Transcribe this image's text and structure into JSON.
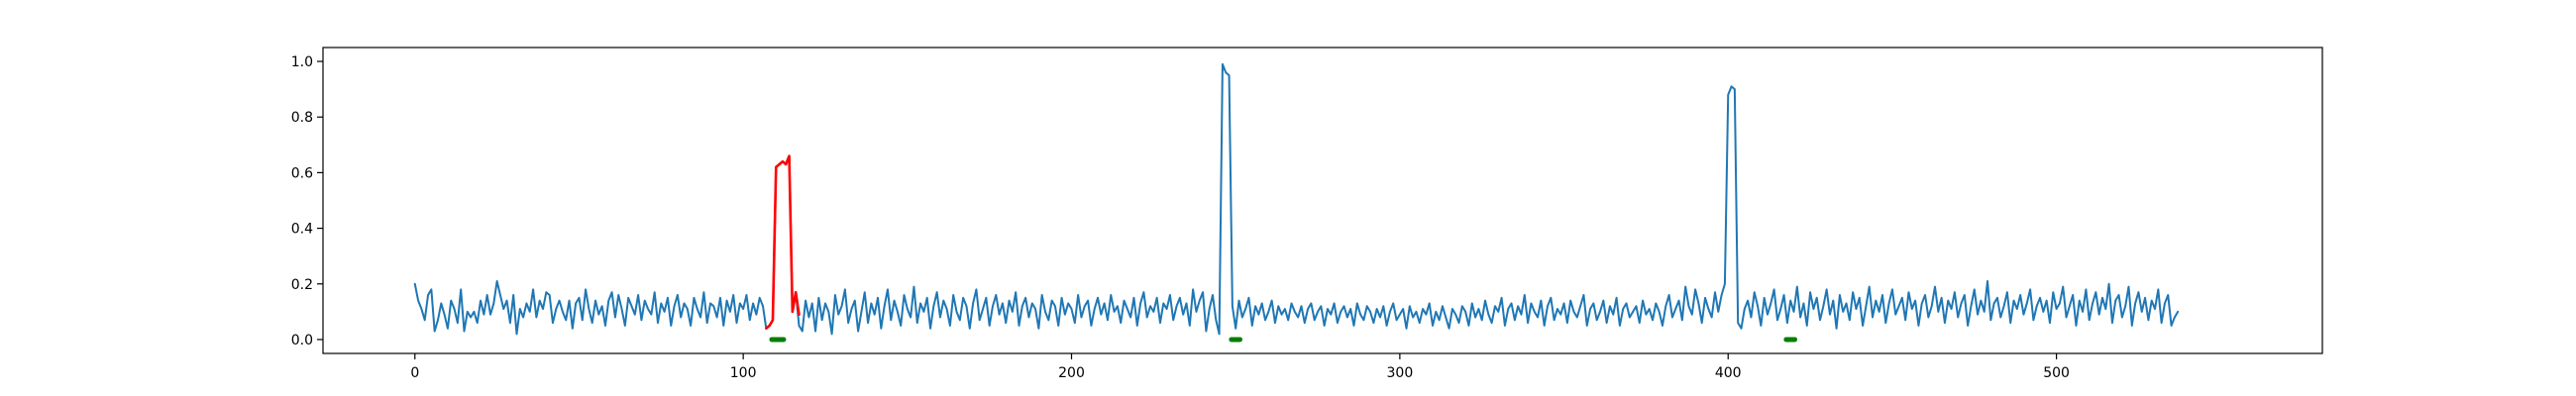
{
  "chart_data": {
    "type": "line",
    "title": "",
    "xlabel": "",
    "ylabel": "",
    "xlim": [
      -28,
      581
    ],
    "ylim": [
      -0.05,
      1.05
    ],
    "x_ticks": [
      0,
      100,
      200,
      300,
      400,
      500
    ],
    "y_ticks": [
      0.0,
      0.2,
      0.4,
      0.6,
      0.8,
      1.0
    ],
    "x_tick_labels": [
      "0",
      "100",
      "200",
      "300",
      "400",
      "500"
    ],
    "y_tick_labels": [
      "0.0",
      "0.2",
      "0.4",
      "0.6",
      "0.8",
      "1.0"
    ],
    "grid": false,
    "legend": "none",
    "series": [
      {
        "color": "#1f77b4",
        "x_start": 0,
        "values": [
          0.2,
          0.14,
          0.11,
          0.07,
          0.16,
          0.18,
          0.03,
          0.07,
          0.13,
          0.09,
          0.04,
          0.14,
          0.11,
          0.06,
          0.18,
          0.03,
          0.1,
          0.08,
          0.1,
          0.06,
          0.14,
          0.09,
          0.16,
          0.09,
          0.13,
          0.21,
          0.16,
          0.11,
          0.14,
          0.06,
          0.16,
          0.02,
          0.11,
          0.08,
          0.13,
          0.1,
          0.18,
          0.08,
          0.14,
          0.11,
          0.17,
          0.16,
          0.06,
          0.11,
          0.14,
          0.1,
          0.07,
          0.14,
          0.04,
          0.13,
          0.15,
          0.07,
          0.18,
          0.11,
          0.06,
          0.14,
          0.09,
          0.12,
          0.05,
          0.14,
          0.17,
          0.08,
          0.16,
          0.11,
          0.05,
          0.15,
          0.12,
          0.09,
          0.16,
          0.07,
          0.14,
          0.11,
          0.09,
          0.17,
          0.06,
          0.13,
          0.1,
          0.15,
          0.05,
          0.12,
          0.16,
          0.08,
          0.13,
          0.11,
          0.05,
          0.15,
          0.11,
          0.08,
          0.17,
          0.06,
          0.13,
          0.12,
          0.08,
          0.15,
          0.05,
          0.14,
          0.1,
          0.16,
          0.06,
          0.13,
          0.11,
          0.16,
          0.07,
          0.13,
          0.09,
          0.15,
          0.12,
          0.04,
          0.05,
          0.07,
          0.62,
          0.63,
          0.64,
          0.63,
          0.66,
          0.1,
          0.17,
          0.05,
          0.03,
          0.14,
          0.08,
          0.13,
          0.03,
          0.15,
          0.07,
          0.13,
          0.1,
          0.02,
          0.16,
          0.09,
          0.12,
          0.18,
          0.06,
          0.11,
          0.14,
          0.03,
          0.1,
          0.17,
          0.06,
          0.13,
          0.09,
          0.15,
          0.04,
          0.12,
          0.18,
          0.07,
          0.14,
          0.1,
          0.05,
          0.16,
          0.11,
          0.08,
          0.19,
          0.06,
          0.13,
          0.1,
          0.15,
          0.04,
          0.12,
          0.17,
          0.08,
          0.14,
          0.11,
          0.05,
          0.16,
          0.1,
          0.07,
          0.15,
          0.12,
          0.04,
          0.13,
          0.18,
          0.07,
          0.11,
          0.15,
          0.05,
          0.12,
          0.16,
          0.09,
          0.13,
          0.06,
          0.14,
          0.1,
          0.17,
          0.05,
          0.12,
          0.15,
          0.08,
          0.13,
          0.11,
          0.04,
          0.16,
          0.1,
          0.07,
          0.14,
          0.12,
          0.05,
          0.15,
          0.09,
          0.13,
          0.11,
          0.06,
          0.16,
          0.08,
          0.12,
          0.14,
          0.05,
          0.11,
          0.15,
          0.09,
          0.13,
          0.07,
          0.16,
          0.1,
          0.12,
          0.06,
          0.14,
          0.11,
          0.08,
          0.15,
          0.05,
          0.13,
          0.17,
          0.08,
          0.12,
          0.1,
          0.15,
          0.06,
          0.13,
          0.11,
          0.16,
          0.07,
          0.12,
          0.15,
          0.09,
          0.13,
          0.05,
          0.18,
          0.1,
          0.14,
          0.17,
          0.03,
          0.11,
          0.16,
          0.07,
          0.02,
          0.99,
          0.96,
          0.95,
          0.12,
          0.04,
          0.14,
          0.08,
          0.11,
          0.15,
          0.05,
          0.12,
          0.09,
          0.13,
          0.07,
          0.1,
          0.14,
          0.06,
          0.12,
          0.09,
          0.11,
          0.07,
          0.13,
          0.1,
          0.08,
          0.12,
          0.06,
          0.11,
          0.13,
          0.07,
          0.1,
          0.12,
          0.05,
          0.11,
          0.09,
          0.13,
          0.06,
          0.1,
          0.12,
          0.08,
          0.11,
          0.05,
          0.13,
          0.09,
          0.07,
          0.12,
          0.1,
          0.06,
          0.11,
          0.08,
          0.12,
          0.05,
          0.1,
          0.13,
          0.07,
          0.09,
          0.11,
          0.04,
          0.12,
          0.08,
          0.1,
          0.06,
          0.11,
          0.09,
          0.13,
          0.05,
          0.1,
          0.07,
          0.12,
          0.08,
          0.04,
          0.11,
          0.09,
          0.06,
          0.12,
          0.1,
          0.05,
          0.13,
          0.08,
          0.11,
          0.07,
          0.14,
          0.09,
          0.06,
          0.12,
          0.1,
          0.15,
          0.05,
          0.11,
          0.13,
          0.07,
          0.12,
          0.09,
          0.16,
          0.06,
          0.13,
          0.1,
          0.08,
          0.14,
          0.05,
          0.12,
          0.15,
          0.07,
          0.11,
          0.09,
          0.13,
          0.06,
          0.14,
          0.1,
          0.08,
          0.12,
          0.16,
          0.05,
          0.11,
          0.13,
          0.07,
          0.1,
          0.14,
          0.06,
          0.12,
          0.09,
          0.15,
          0.05,
          0.11,
          0.13,
          0.08,
          0.1,
          0.12,
          0.06,
          0.14,
          0.09,
          0.11,
          0.07,
          0.13,
          0.1,
          0.05,
          0.12,
          0.16,
          0.08,
          0.11,
          0.14,
          0.07,
          0.19,
          0.12,
          0.09,
          0.18,
          0.13,
          0.06,
          0.15,
          0.11,
          0.08,
          0.17,
          0.1,
          0.16,
          0.2,
          0.88,
          0.91,
          0.9,
          0.06,
          0.04,
          0.11,
          0.14,
          0.08,
          0.17,
          0.12,
          0.05,
          0.15,
          0.09,
          0.13,
          0.18,
          0.07,
          0.11,
          0.16,
          0.06,
          0.14,
          0.1,
          0.19,
          0.08,
          0.13,
          0.05,
          0.17,
          0.11,
          0.15,
          0.07,
          0.12,
          0.18,
          0.09,
          0.14,
          0.04,
          0.16,
          0.1,
          0.13,
          0.07,
          0.17,
          0.11,
          0.15,
          0.05,
          0.12,
          0.19,
          0.08,
          0.14,
          0.1,
          0.16,
          0.06,
          0.13,
          0.18,
          0.09,
          0.12,
          0.15,
          0.07,
          0.17,
          0.11,
          0.14,
          0.05,
          0.13,
          0.16,
          0.08,
          0.12,
          0.19,
          0.1,
          0.15,
          0.06,
          0.14,
          0.11,
          0.17,
          0.08,
          0.13,
          0.16,
          0.05,
          0.12,
          0.18,
          0.09,
          0.14,
          0.1,
          0.21,
          0.07,
          0.13,
          0.15,
          0.08,
          0.12,
          0.17,
          0.06,
          0.14,
          0.11,
          0.16,
          0.09,
          0.13,
          0.18,
          0.07,
          0.12,
          0.15,
          0.1,
          0.14,
          0.06,
          0.17,
          0.11,
          0.13,
          0.19,
          0.08,
          0.12,
          0.16,
          0.05,
          0.14,
          0.1,
          0.18,
          0.07,
          0.13,
          0.17,
          0.09,
          0.15,
          0.11,
          0.2,
          0.06,
          0.14,
          0.16,
          0.08,
          0.12,
          0.19,
          0.05,
          0.13,
          0.17,
          0.1,
          0.15,
          0.07,
          0.14,
          0.11,
          0.18,
          0.06,
          0.13,
          0.16,
          0.05,
          0.08,
          0.1
        ]
      },
      {
        "color": "#ff0000",
        "x_start": 107,
        "values": [
          0.04,
          0.05,
          0.07,
          0.62,
          0.63,
          0.64,
          0.63,
          0.66,
          0.1,
          0.17,
          0.09
        ]
      },
      {
        "color": "#008000",
        "x": [
          109,
          110,
          111,
          112,
          249,
          250,
          251,
          418,
          419,
          420
        ],
        "values": [
          0,
          0,
          0,
          0,
          0,
          0,
          0,
          0,
          0,
          0
        ]
      }
    ]
  }
}
